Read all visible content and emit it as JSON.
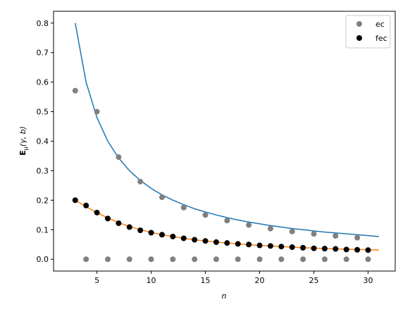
{
  "chart_data": {
    "type": "scatter",
    "title": "",
    "xlabel": "n",
    "ylabel_main": "E",
    "ylabel_sub": "μ",
    "ylabel_rest": "(γ, b)",
    "xlim": [
      1.0,
      32.5
    ],
    "ylim": [
      -0.04,
      0.84
    ],
    "xticks": [
      5,
      10,
      15,
      20,
      25,
      30
    ],
    "yticks": [
      0.0,
      0.1,
      0.2,
      0.3,
      0.4,
      0.5,
      0.6,
      0.7,
      0.8
    ],
    "xtick_labels": [
      "5",
      "10",
      "15",
      "20",
      "25",
      "30"
    ],
    "ytick_labels": [
      "0.0",
      "0.1",
      "0.2",
      "0.3",
      "0.4",
      "0.5",
      "0.6",
      "0.7",
      "0.8"
    ],
    "grid": false,
    "legend_position": "top-right",
    "series": [
      {
        "name": "ec",
        "kind": "scatter",
        "color": "#808080",
        "x": [
          3,
          4,
          5,
          6,
          7,
          8,
          9,
          10,
          11,
          12,
          13,
          14,
          15,
          16,
          17,
          18,
          19,
          20,
          21,
          22,
          23,
          24,
          25,
          26,
          27,
          28,
          29,
          30
        ],
        "y": [
          0.571,
          0.0,
          0.5,
          0.0,
          0.346,
          0.0,
          0.263,
          0.0,
          0.21,
          0.0,
          0.175,
          0.0,
          0.15,
          0.0,
          0.131,
          0.0,
          0.116,
          0.0,
          0.104,
          0.0,
          0.094,
          0.0,
          0.086,
          0.0,
          0.079,
          0.0,
          0.073,
          0.0
        ]
      },
      {
        "name": "fec",
        "kind": "scatter",
        "color": "#000000",
        "x": [
          3,
          4,
          5,
          6,
          7,
          8,
          9,
          10,
          11,
          12,
          13,
          14,
          15,
          16,
          17,
          18,
          19,
          20,
          21,
          22,
          23,
          24,
          25,
          26,
          27,
          28,
          29,
          30
        ],
        "y": [
          0.2,
          0.182,
          0.158,
          0.138,
          0.122,
          0.109,
          0.098,
          0.09,
          0.083,
          0.077,
          0.071,
          0.066,
          0.062,
          0.058,
          0.055,
          0.052,
          0.05,
          0.047,
          0.045,
          0.043,
          0.041,
          0.039,
          0.037,
          0.036,
          0.035,
          0.033,
          0.032,
          0.031
        ]
      },
      {
        "kind": "line",
        "color": "#1f77b4",
        "x": [
          3,
          4,
          5,
          6,
          7,
          8,
          9,
          10,
          11,
          12,
          13,
          14,
          15,
          16,
          17,
          18,
          19,
          20,
          21,
          22,
          23,
          24,
          25,
          26,
          27,
          28,
          29,
          30,
          31
        ],
        "y": [
          0.8,
          0.6,
          0.48,
          0.4,
          0.343,
          0.3,
          0.267,
          0.24,
          0.218,
          0.2,
          0.185,
          0.171,
          0.16,
          0.15,
          0.141,
          0.133,
          0.126,
          0.12,
          0.114,
          0.109,
          0.104,
          0.1,
          0.096,
          0.092,
          0.089,
          0.086,
          0.083,
          0.08,
          0.077
        ]
      },
      {
        "kind": "line",
        "color": "#ff7f0e",
        "x": [
          3,
          4,
          5,
          6,
          7,
          8,
          9,
          10,
          11,
          12,
          13,
          14,
          15,
          16,
          17,
          18,
          19,
          20,
          21,
          22,
          23,
          24,
          25,
          26,
          27,
          28,
          29,
          30,
          31
        ],
        "y": [
          0.2,
          0.178,
          0.158,
          0.14,
          0.124,
          0.111,
          0.1,
          0.091,
          0.083,
          0.077,
          0.071,
          0.066,
          0.062,
          0.058,
          0.055,
          0.052,
          0.049,
          0.047,
          0.045,
          0.043,
          0.041,
          0.039,
          0.038,
          0.036,
          0.035,
          0.034,
          0.033,
          0.032,
          0.031
        ]
      }
    ]
  }
}
